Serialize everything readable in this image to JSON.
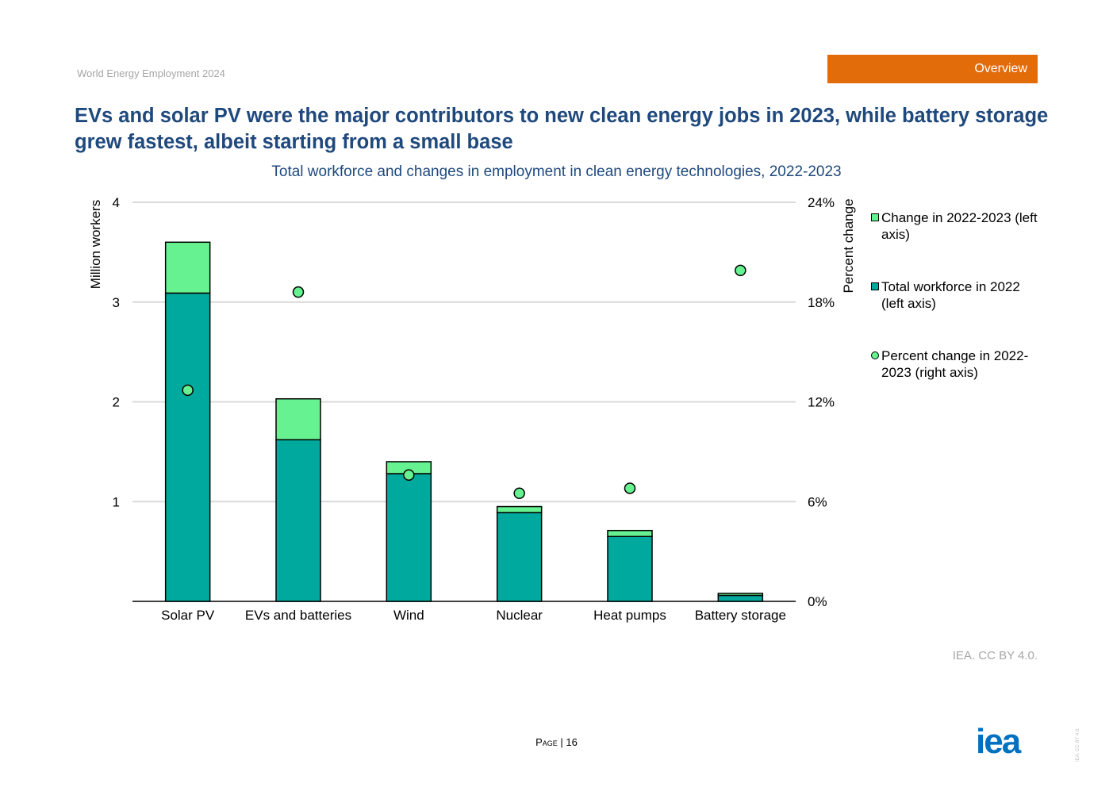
{
  "header": {
    "report_name": "World Energy Employment 2024",
    "section_tab": "Overview"
  },
  "title": "EVs and solar PV were the major contributors to new clean energy jobs in 2023, while battery storage grew fastest, albeit starting from a small base",
  "chart_data": {
    "type": "bar",
    "stacked": true,
    "title": "Total workforce and changes in employment in clean energy technologies, 2022-2023",
    "categories": [
      "Solar PV",
      "EVs and batteries",
      "Wind",
      "Nuclear",
      "Heat pumps",
      "Battery storage"
    ],
    "series": [
      {
        "name": "Total workforce in 2022 (left axis)",
        "type": "bar",
        "axis": "left",
        "color": "#00a99d",
        "values": [
          3.09,
          1.62,
          1.28,
          0.89,
          0.65,
          0.06
        ]
      },
      {
        "name": "Change in 2022-2023 (left axis)",
        "type": "bar",
        "axis": "left",
        "color": "#66f290",
        "values": [
          0.51,
          0.41,
          0.12,
          0.06,
          0.06,
          0.02
        ]
      },
      {
        "name": "Percent change in 2022-2023 (right axis)",
        "type": "scatter",
        "axis": "right",
        "color": "#66f290",
        "values": [
          12.7,
          18.6,
          7.6,
          6.5,
          6.8,
          19.9
        ]
      }
    ],
    "left_axis": {
      "label": "Million workers",
      "range": [
        0,
        4
      ],
      "ticks": [
        1,
        2,
        3,
        4
      ],
      "tick_labels": [
        "1",
        "2",
        "3",
        "4"
      ]
    },
    "right_axis": {
      "label": "Percent change",
      "range": [
        0,
        24
      ],
      "ticks": [
        0,
        6,
        12,
        18,
        24
      ],
      "tick_labels": [
        "0%",
        "6%",
        "12%",
        "18%",
        "24%"
      ]
    },
    "grid": true,
    "legend_position": "right",
    "legend": [
      {
        "label": "Change in 2022-2023 (left axis)",
        "marker": "square",
        "color": "#66f290"
      },
      {
        "label": "Total workforce in 2022 (left axis)",
        "marker": "square",
        "color": "#00a99d"
      },
      {
        "label": "Percent change in 2022-2023 (right axis)",
        "marker": "circle",
        "color": "#66f290"
      }
    ]
  },
  "source_note": "IEA. CC BY 4.0.",
  "footer": {
    "page_label": "Page",
    "page_number": "16"
  },
  "logo_text": "iea",
  "side_credit": "IEA. CC BY 4.0."
}
